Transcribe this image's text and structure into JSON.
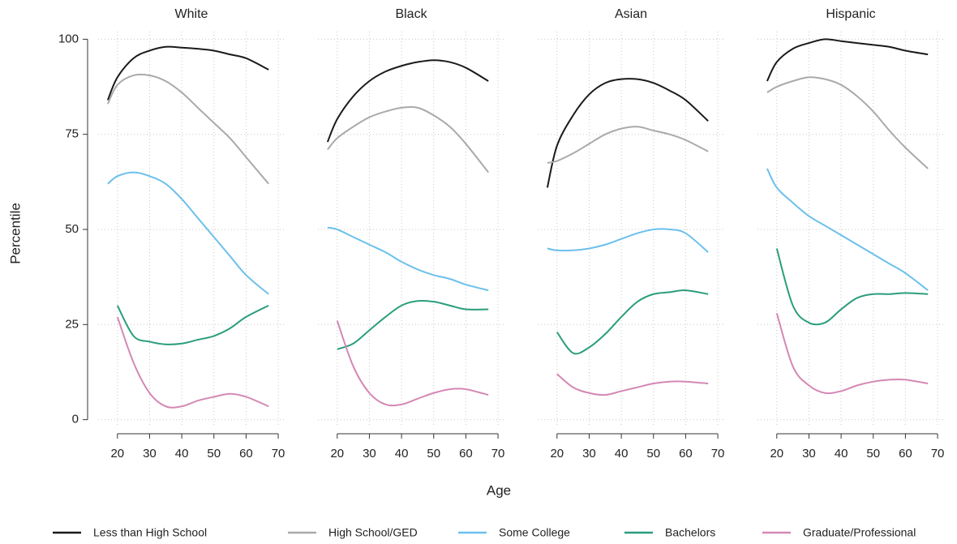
{
  "chart_data": {
    "type": "line",
    "xlabel": "Age",
    "ylabel": "Percentile",
    "x": [
      17,
      20,
      25,
      30,
      35,
      40,
      45,
      50,
      55,
      60,
      67
    ],
    "xlim": [
      14,
      72
    ],
    "xticks": [
      20,
      30,
      40,
      50,
      60,
      70
    ],
    "ylim": [
      -2,
      102
    ],
    "yticks": [
      0,
      25,
      50,
      75,
      100
    ],
    "grid": true,
    "legend": [
      {
        "name": "Less than High School",
        "color": "#1a1a1a"
      },
      {
        "name": "High School/GED",
        "color": "#aaaaaa"
      },
      {
        "name": "Some College",
        "color": "#6cc0ec"
      },
      {
        "name": "Bachelors",
        "color": "#2a9d7c"
      },
      {
        "name": "Graduate/Professional",
        "color": "#d488b5"
      }
    ],
    "panels": [
      {
        "title": "White",
        "series": [
          {
            "values": [
              84,
              90,
              95,
              97,
              98,
              97.8,
              97.5,
              97,
              96,
              95,
              92
            ]
          },
          {
            "values": [
              83,
              88,
              90.5,
              90.5,
              89,
              86,
              82,
              78,
              74,
              69,
              62
            ]
          },
          {
            "values": [
              62,
              64,
              65,
              64,
              62,
              58,
              53,
              48,
              43,
              38,
              33
            ]
          },
          {
            "values": [
              null,
              30,
              22,
              20.5,
              19.8,
              20,
              21,
              22,
              24,
              27,
              30
            ]
          },
          {
            "values": [
              null,
              27,
              15,
              7,
              3.5,
              3.5,
              5,
              6,
              6.8,
              6,
              3.5
            ]
          }
        ]
      },
      {
        "title": "Black",
        "series": [
          {
            "values": [
              73,
              79,
              85,
              89,
              91.5,
              93,
              94,
              94.5,
              94,
              92.5,
              89
            ]
          },
          {
            "values": [
              71,
              74,
              77,
              79.5,
              81,
              82,
              82,
              80,
              77,
              72.5,
              65
            ]
          },
          {
            "values": [
              50.5,
              50,
              48,
              46,
              44,
              41.5,
              39.5,
              38,
              37,
              35.5,
              34
            ]
          },
          {
            "values": [
              null,
              18.5,
              20,
              23.5,
              27,
              30,
              31.2,
              31,
              30,
              29,
              29
            ]
          },
          {
            "values": [
              null,
              26,
              14,
              7,
              4,
              4,
              5.5,
              7,
              8,
              8,
              6.5
            ]
          }
        ]
      },
      {
        "title": "Asian",
        "series": [
          {
            "values": [
              61,
              72,
              80,
              85.5,
              88.5,
              89.5,
              89.5,
              88.5,
              86.5,
              84,
              78.5
            ]
          },
          {
            "values": [
              67.5,
              68,
              70,
              72.5,
              75,
              76.5,
              77,
              76,
              75,
              73.5,
              70.5
            ]
          },
          {
            "values": [
              45,
              44.5,
              44.5,
              45,
              46,
              47.5,
              49,
              50,
              50,
              49,
              44
            ]
          },
          {
            "values": [
              null,
              23,
              17.5,
              19,
              22.5,
              27,
              31,
              33,
              33.5,
              34,
              33
            ]
          },
          {
            "values": [
              null,
              12,
              8.5,
              7,
              6.5,
              7.5,
              8.5,
              9.5,
              10,
              10,
              9.5
            ]
          }
        ]
      },
      {
        "title": "Hispanic",
        "series": [
          {
            "values": [
              89,
              94,
              97.5,
              99,
              100,
              99.5,
              99,
              98.5,
              98,
              97,
              96
            ]
          },
          {
            "values": [
              86,
              87.5,
              89,
              90,
              89.5,
              88,
              85,
              81,
              76,
              71.5,
              66
            ]
          },
          {
            "values": [
              66,
              61,
              57,
              53.5,
              51,
              48.5,
              46,
              43.5,
              41,
              38.5,
              34
            ]
          },
          {
            "values": [
              null,
              45,
              30,
              25.5,
              25.5,
              29,
              32,
              33,
              33,
              33.3,
              33
            ]
          },
          {
            "values": [
              null,
              28,
              14,
              9,
              7,
              7.5,
              9,
              10,
              10.5,
              10.5,
              9.5
            ]
          }
        ]
      }
    ]
  }
}
